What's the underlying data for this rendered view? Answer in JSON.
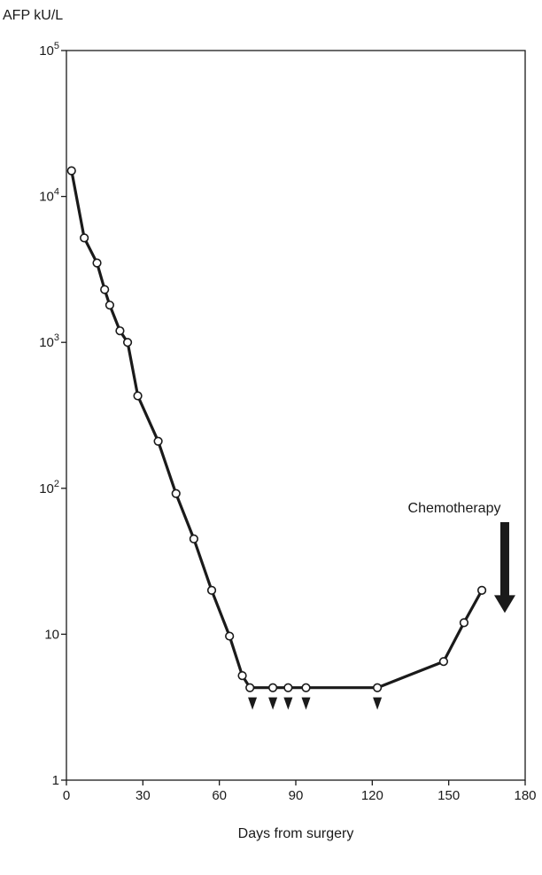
{
  "chart_data": {
    "type": "line",
    "title": "",
    "ylabel": "AFP kU/L",
    "xlabel": "Days from surgery",
    "xlim": [
      0,
      180
    ],
    "ylim": [
      1,
      100000
    ],
    "yscale": "log",
    "grid": false,
    "x_ticks": [
      {
        "value": 0,
        "label": "0"
      },
      {
        "value": 30,
        "label": "30"
      },
      {
        "value": 60,
        "label": "60"
      },
      {
        "value": 90,
        "label": "90"
      },
      {
        "value": 120,
        "label": "120"
      },
      {
        "value": 150,
        "label": "150"
      },
      {
        "value": 180,
        "label": "180"
      }
    ],
    "y_ticks": [
      {
        "value": 1,
        "base": "1",
        "exp": ""
      },
      {
        "value": 10,
        "base": "10",
        "exp": ""
      },
      {
        "value": 100,
        "base": "10",
        "exp": "2"
      },
      {
        "value": 1000,
        "base": "10",
        "exp": "3"
      },
      {
        "value": 10000,
        "base": "10",
        "exp": "4"
      },
      {
        "value": 100000,
        "base": "10",
        "exp": "5"
      }
    ],
    "series": [
      {
        "x": [
          2,
          7,
          12,
          15,
          17,
          21,
          24,
          28,
          36,
          43,
          50,
          57,
          64,
          69,
          72,
          81,
          87,
          94,
          122,
          148,
          156,
          163
        ],
        "y": [
          15000,
          5200,
          3500,
          2300,
          1800,
          1200,
          1000,
          430,
          210,
          92,
          45,
          20,
          9.7,
          5.2,
          4.3,
          4.3,
          4.3,
          4.3,
          4.3,
          6.5,
          12,
          20
        ]
      }
    ],
    "markers": {
      "x": [
        73,
        81,
        87,
        94,
        122
      ],
      "y": 3.3,
      "shape": "triangle-down"
    },
    "annotations": [
      {
        "text": "Chemotherapy",
        "x": 172,
        "y": 14
      }
    ]
  }
}
